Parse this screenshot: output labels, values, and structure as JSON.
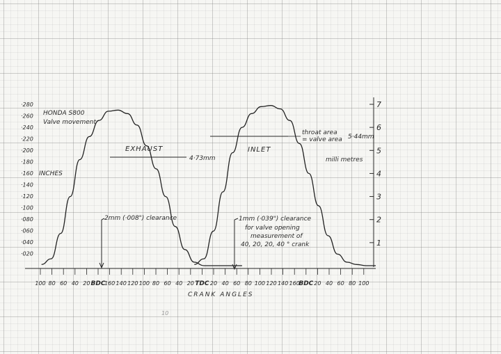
{
  "chart_data": {
    "type": "line",
    "title": "HONDA S800",
    "subtitle": "Valve movement",
    "xlabel": "CRANK ANGLES",
    "ylabel_left": "INCHES",
    "ylabel_right": "milli metres",
    "left_ticks": [
      "·280",
      "·260",
      "·240",
      "·220",
      "·200",
      "·180",
      "·160",
      "·140",
      "·120",
      "·100",
      "·080",
      "·060",
      "·040",
      "·020"
    ],
    "right_ticks": [
      "7",
      "6",
      "5",
      "4",
      "3",
      "2",
      "1"
    ],
    "x_ticks": [
      "100",
      "80",
      "60",
      "40",
      "20",
      "BDC",
      "160",
      "140",
      "120",
      "100",
      "80",
      "60",
      "40",
      "20",
      "TDC",
      "20",
      "40",
      "60",
      "80",
      "100",
      "120",
      "140",
      "160",
      "BDC",
      "20",
      "40",
      "60",
      "80",
      "100"
    ],
    "ylim_mm": [
      0,
      7.2
    ],
    "series": [
      {
        "name": "EXHAUST",
        "x": [
          -80,
          -60,
          -40,
          -20,
          0,
          20,
          40,
          60,
          80,
          100,
          120,
          140,
          160,
          180,
          200,
          220,
          240,
          260,
          280,
          300,
          320,
          340
        ],
        "y": [
          0.05,
          0.3,
          1.4,
          3.0,
          4.6,
          5.6,
          6.3,
          6.7,
          6.75,
          6.6,
          6.1,
          5.2,
          4.2,
          3.0,
          1.7,
          0.7,
          0.15,
          0,
          0,
          0,
          0,
          0
        ]
      },
      {
        "name": "INLET",
        "x": [
          240,
          260,
          280,
          300,
          320,
          340,
          360,
          380,
          400,
          420,
          440,
          460,
          480,
          500,
          520,
          540,
          560,
          580,
          600,
          620
        ],
        "y": [
          0.05,
          0.3,
          1.5,
          3.2,
          4.9,
          6.0,
          6.6,
          6.9,
          6.95,
          6.8,
          6.3,
          5.3,
          4.0,
          2.6,
          1.3,
          0.5,
          0.15,
          0.05,
          0,
          0
        ]
      }
    ],
    "annotations": {
      "exhaust_label": "EXHAUST",
      "inlet_label": "INLET",
      "exhaust_width": "4·73mm",
      "throat_area": "throat area",
      "valve_area": "= valve area",
      "throat_width": "5·44mm",
      "exhaust_clearance": "2mm (·008\") clearance",
      "inlet_clearance_1": "1mm (·039\") clearance",
      "inlet_clearance_2": "for valve opening",
      "inlet_clearance_3": "measurement of",
      "inlet_clearance_4": "40, 20, 20, 40 ° crank"
    },
    "grid": true
  },
  "page_number": "10"
}
